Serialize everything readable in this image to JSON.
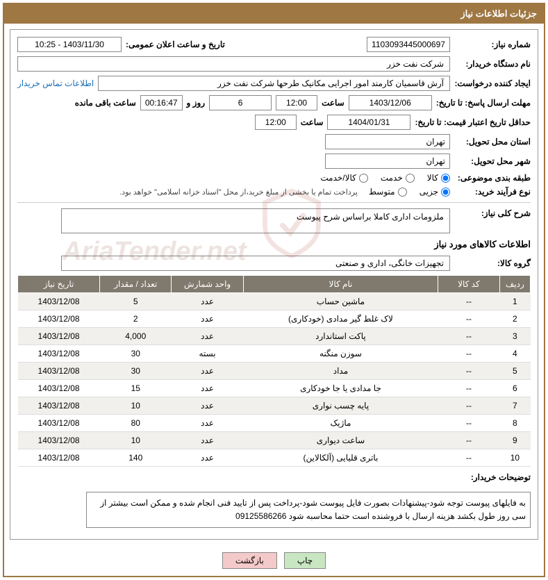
{
  "header": {
    "title": "جزئیات اطلاعات نیاز"
  },
  "labels": {
    "need_no": "شماره نیاز:",
    "ann_datetime": "تاریخ و ساعت اعلان عمومی:",
    "buyer_org": "نام دستگاه خریدار:",
    "requester": "ایجاد کننده درخواست:",
    "buyer_contact": "اطلاعات تماس خریدار",
    "reply_deadline": "مهلت ارسال پاسخ: تا تاریخ:",
    "hour": "ساعت",
    "days_and": "روز و",
    "remaining": "ساعت باقی مانده",
    "price_validity": "حداقل تاریخ اعتبار قیمت: تا تاریخ:",
    "delivery_province": "استان محل تحویل:",
    "delivery_city": "شهر محل تحویل:",
    "subject_class": "طبقه بندی موضوعی:",
    "purchase_type": "نوع فرآیند خرید:",
    "general_desc": "شرح کلی نیاز:",
    "goods_info": "اطلاعات کالاهای مورد نیاز",
    "goods_group": "گروه کالا:",
    "buyer_notes": "توضیحات خریدار:"
  },
  "fields": {
    "need_no": "1103093445000697",
    "ann_datetime": "1403/11/30 - 10:25",
    "buyer_org": "شرکت نفت خزر",
    "requester": "آرش قاسمیان کارمند امور اجرایی مکانیک طرحها شرکت نفت خزر",
    "reply_date": "1403/12/06",
    "reply_time": "12:00",
    "days": "6",
    "countdown": "00:16:47",
    "validity_date": "1404/01/31",
    "validity_time": "12:00",
    "province": "تهران",
    "city": "تهران",
    "general_desc": "ملزومات اداری کاملا براساس شرح پیوست",
    "goods_group": "تجهیزات خانگی، اداری و صنعتی"
  },
  "radios": {
    "subject": {
      "goods": "کالا",
      "service": "خدمت",
      "goods_service": "کالا/خدمت"
    },
    "purchase": {
      "minor": "جزیی",
      "medium": "متوسط"
    }
  },
  "payment_note": "پرداخت تمام یا بخشی از مبلغ خرید،از محل \"اسناد خزانه اسلامی\" خواهد بود.",
  "table": {
    "headers": [
      "ردیف",
      "کد کالا",
      "نام کالا",
      "واحد شمارش",
      "تعداد / مقدار",
      "تاریخ نیاز"
    ],
    "rows": [
      [
        "1",
        "--",
        "ماشین حساب",
        "عدد",
        "5",
        "1403/12/08"
      ],
      [
        "2",
        "--",
        "لاک غلط گیر مدادی (خودکاری)",
        "عدد",
        "2",
        "1403/12/08"
      ],
      [
        "3",
        "--",
        "پاکت استاندارد",
        "عدد",
        "4,000",
        "1403/12/08"
      ],
      [
        "4",
        "--",
        "سوزن منگنه",
        "بسته",
        "30",
        "1403/12/08"
      ],
      [
        "5",
        "--",
        "مداد",
        "عدد",
        "30",
        "1403/12/08"
      ],
      [
        "6",
        "--",
        "جا مدادی یا جا خودکاری",
        "عدد",
        "15",
        "1403/12/08"
      ],
      [
        "7",
        "--",
        "پایه چسب نواری",
        "عدد",
        "10",
        "1403/12/08"
      ],
      [
        "8",
        "--",
        "ماژیک",
        "عدد",
        "80",
        "1403/12/08"
      ],
      [
        "9",
        "--",
        "ساعت دیواری",
        "عدد",
        "10",
        "1403/12/08"
      ],
      [
        "10",
        "--",
        "باتری قلیایی (آلکالاین)",
        "عدد",
        "140",
        "1403/12/08"
      ]
    ]
  },
  "buyer_notes": "به فایلهای پیوست توجه شود-پیشنهادات بصورت فایل پیوست شود-پرداخت پس از تایید فنی انجام شده و ممکن است بیشتر از سی روز طول بکشد هزینه ارسال با فروشنده است حتما محاسبه شود 09125586266",
  "buttons": {
    "print": "چاپ",
    "back": "بازگشت"
  },
  "styling": {
    "header_bg": "#9e7743",
    "header_text": "#ffffff",
    "table_header_bg": "#807a6e",
    "row_odd_bg": "#f2f0ed",
    "row_even_bg": "#ffffff",
    "link_color": "#1a6db5",
    "btn_print_bg": "#c9e6c2",
    "btn_back_bg": "#f4c9c9",
    "border_color": "#888888",
    "col_widths": [
      "6%",
      "12%",
      "38%",
      "14%",
      "14%",
      "16%"
    ]
  }
}
